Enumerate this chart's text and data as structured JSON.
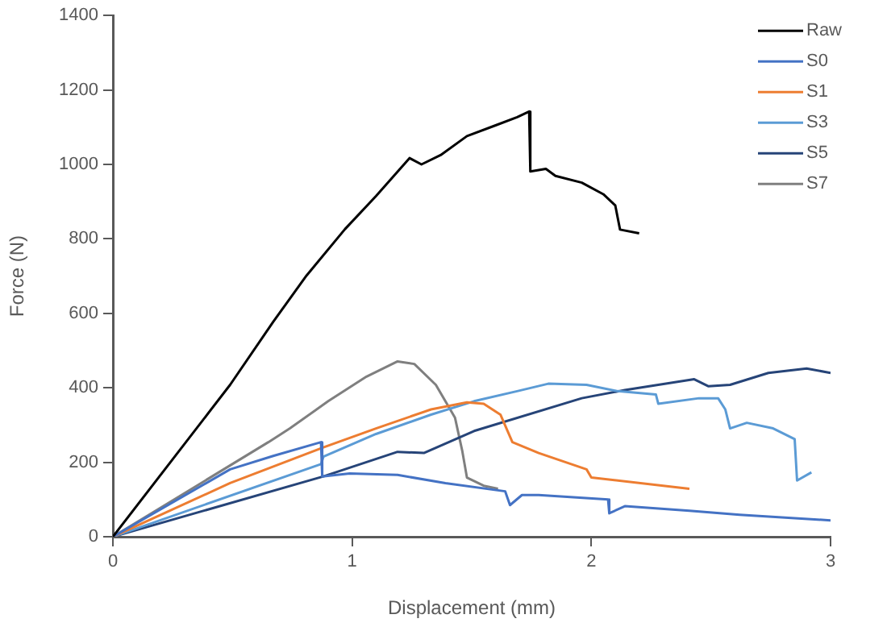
{
  "chart_data": {
    "type": "line",
    "xlabel": "Displacement (mm)",
    "ylabel": "Force (N)",
    "xlim": [
      0,
      3
    ],
    "xticks": [
      0,
      1,
      2,
      3
    ],
    "ylim": [
      0,
      1400
    ],
    "yticks": [
      0,
      200,
      400,
      600,
      800,
      1000,
      1200,
      1400
    ],
    "grid": false,
    "legend": "top right",
    "marker": "none",
    "line_style": "solid",
    "series": [
      {
        "name": "Raw",
        "color": "#000000",
        "x": [
          0,
          0.49,
          0.67,
          0.81,
          0.97,
          1.1,
          1.24,
          1.29,
          1.37,
          1.48,
          1.6,
          1.69,
          1.74,
          1.745,
          1.81,
          1.85,
          1.96,
          2.05,
          2.1,
          2.12,
          2.2
        ],
        "values": [
          0,
          408,
          577,
          702,
          826,
          915,
          1017,
          1000,
          1025,
          1076,
          1105,
          1127,
          1142,
          981,
          988,
          969,
          951,
          920,
          890,
          825,
          815
        ]
      },
      {
        "name": "S0",
        "color": "#4472c4",
        "x": [
          0,
          0.49,
          0.67,
          0.87,
          0.875,
          0.99,
          1.19,
          1.39,
          1.64,
          1.66,
          1.71,
          1.78,
          2.07,
          2.075,
          2.14,
          2.41,
          2.62,
          3
        ],
        "values": [
          0,
          181,
          217,
          254,
          162,
          170,
          166,
          144,
          122,
          85,
          112,
          112,
          100,
          63,
          82,
          70,
          59,
          44
        ]
      },
      {
        "name": "S1",
        "color": "#ed7d31",
        "x": [
          0,
          0.49,
          0.88,
          1.1,
          1.33,
          1.48,
          1.55,
          1.62,
          1.67,
          1.78,
          1.98,
          2,
          2.41
        ],
        "values": [
          0,
          144,
          240,
          291,
          342,
          361,
          357,
          328,
          254,
          225,
          181,
          159,
          129
        ]
      },
      {
        "name": "S3",
        "color": "#5b9bd5",
        "x": [
          0,
          0.87,
          0.88,
          1.1,
          1.33,
          1.51,
          1.69,
          1.82,
          1.98,
          2.11,
          2.27,
          2.28,
          2.45,
          2.53,
          2.56,
          2.58,
          2.65,
          2.76,
          2.85,
          2.86,
          2.92
        ],
        "values": [
          0,
          195,
          215,
          276,
          328,
          364,
          391,
          411,
          408,
          391,
          382,
          357,
          372,
          372,
          342,
          291,
          306,
          291,
          262,
          151,
          173
        ]
      },
      {
        "name": "S5",
        "color": "#264478",
        "x": [
          0,
          0.88,
          1.19,
          1.3,
          1.51,
          1.96,
          2.14,
          2.43,
          2.49,
          2.58,
          2.74,
          2.9,
          3
        ],
        "values": [
          0,
          162,
          228,
          225,
          284,
          372,
          394,
          423,
          404,
          408,
          440,
          452,
          440
        ]
      },
      {
        "name": "S7",
        "color": "#7f7f7f",
        "x": [
          0,
          0.65,
          0.74,
          0.9,
          1.06,
          1.19,
          1.26,
          1.35,
          1.43,
          1.46,
          1.48,
          1.55,
          1.61
        ],
        "values": [
          0,
          254,
          291,
          364,
          430,
          471,
          464,
          408,
          320,
          232,
          159,
          137,
          129
        ]
      }
    ]
  }
}
